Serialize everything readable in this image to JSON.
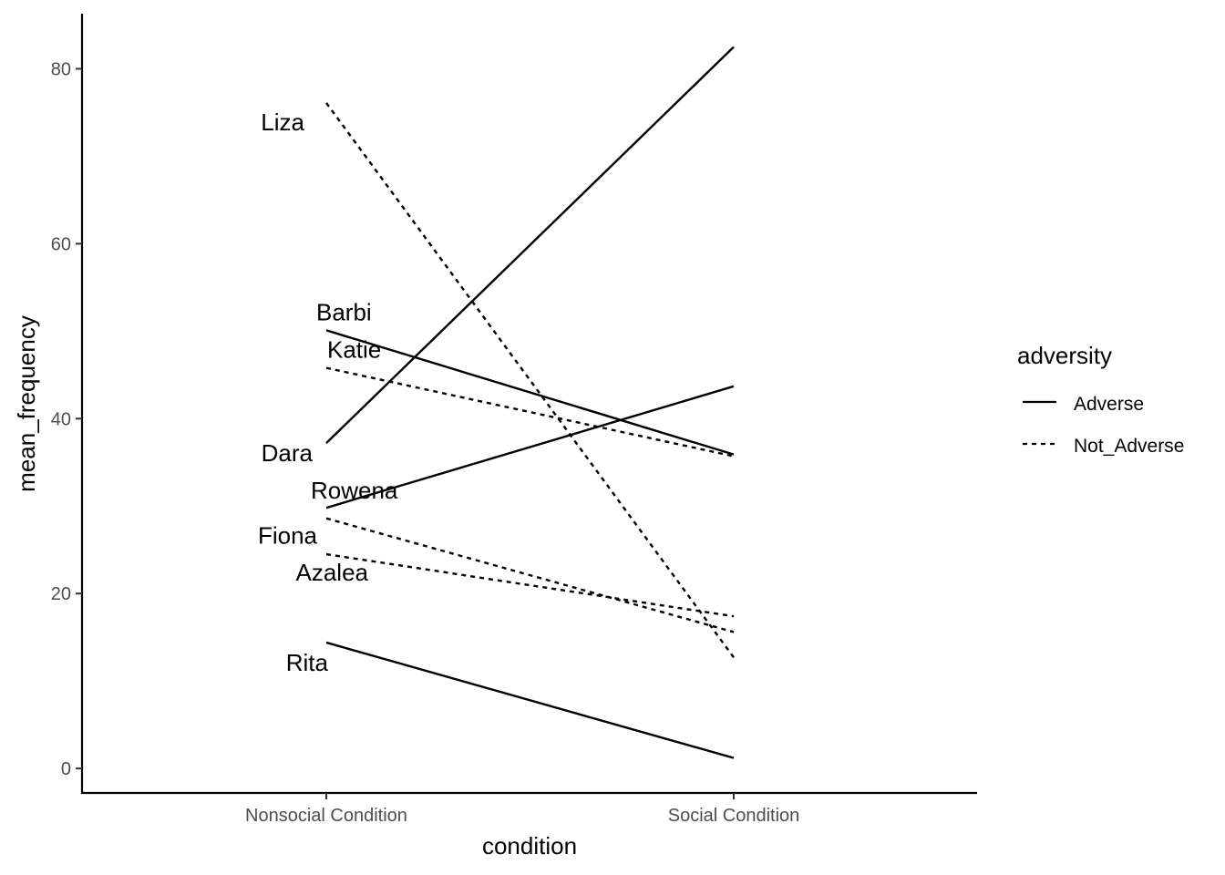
{
  "chart_data": {
    "type": "line",
    "xlabel": "condition",
    "ylabel": "mean_frequency",
    "categories": [
      "Nonsocial Condition",
      "Social Condition"
    ],
    "ylim": [
      -2.8,
      86.3
    ],
    "yticks": [
      0,
      20,
      40,
      60,
      80
    ],
    "grid": false,
    "legend": {
      "title": "adversity",
      "position": "right",
      "entries": [
        {
          "label": "Adverse",
          "linetype": "solid"
        },
        {
          "label": "Not_Adverse",
          "linetype": "dashed"
        }
      ]
    },
    "series": [
      {
        "name": "Liza",
        "adversity": "Not_Adverse",
        "values": [
          76.1,
          12.7
        ]
      },
      {
        "name": "Barbi",
        "adversity": "Adverse",
        "values": [
          50.1,
          35.9
        ]
      },
      {
        "name": "Katie",
        "adversity": "Not_Adverse",
        "values": [
          45.8,
          35.7
        ]
      },
      {
        "name": "Dara",
        "adversity": "Adverse",
        "values": [
          37.2,
          82.5
        ]
      },
      {
        "name": "Rowena",
        "adversity": "Adverse",
        "values": [
          29.8,
          43.7
        ]
      },
      {
        "name": "Fiona",
        "adversity": "Not_Adverse",
        "values": [
          28.6,
          15.6
        ]
      },
      {
        "name": "Azalea",
        "adversity": "Not_Adverse",
        "values": [
          24.5,
          17.4
        ]
      },
      {
        "name": "Rita",
        "adversity": "Adverse",
        "values": [
          14.4,
          1.2
        ]
      }
    ],
    "colors": {
      "line": "#000000",
      "tick_text": "#4d4d4d",
      "background": "#ffffff"
    }
  }
}
